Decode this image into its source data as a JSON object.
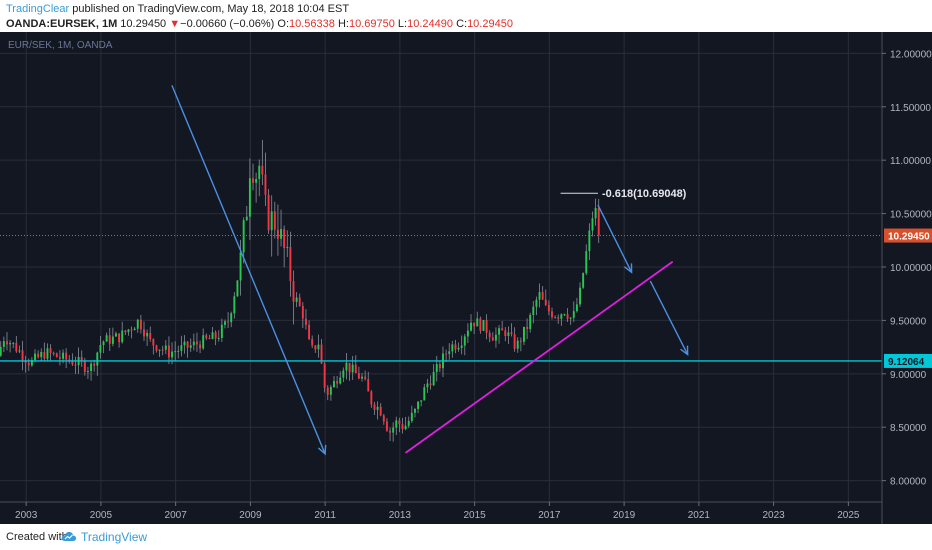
{
  "header": {
    "author": "TradingClear",
    "published_text": " published on TradingView.com, May 18, 2018 10:04 EST",
    "symbol": "OANDA:EURSEK, 1M",
    "last": "10.29450",
    "arrow": "▼",
    "change": "−0.00660 (−0.06%)",
    "o_label": "O:",
    "o_value": "10.56338",
    "h_label": "H:",
    "h_value": "10.69750",
    "l_label": "L:",
    "l_value": "10.24490",
    "c_label": "C:",
    "c_value": "10.29450"
  },
  "footer": {
    "created_with": "Created with",
    "brand": "TradingView"
  },
  "colors": {
    "background": "#131722",
    "grid": "#2a2e39",
    "up": "#26c94e",
    "down": "#f23645",
    "trend_arrow": "#4a90e2",
    "support_line": "#e020e0",
    "horizontal_line": "#00c8d8",
    "price_line": "#e0522b",
    "axis_text": "#b2b5be",
    "axis_bg": "#131722",
    "brand": "#3a9bd9"
  },
  "chart_data": {
    "type": "candlestick",
    "watermark": "EUR/SEK, 1M, OANDA",
    "x_ticks": [
      "2003",
      "2005",
      "2007",
      "2009",
      "2011",
      "2013",
      "2015",
      "2017",
      "2019",
      "2021",
      "2023",
      "2025"
    ],
    "xlim": [
      2002.3,
      2025.9
    ],
    "y_ticks": [
      "8.00000",
      "8.50000",
      "9.00000",
      "9.50000",
      "10.00000",
      "10.50000",
      "11.00000",
      "11.50000",
      "12.00000"
    ],
    "ylim": [
      7.8,
      12.2
    ],
    "last_price": {
      "label": "10.29450",
      "value": 10.2945
    },
    "horizontal_level": {
      "label": "9.12064",
      "value": 9.12064
    },
    "fib_label": {
      "text": "-0.618(10.69048)",
      "value": 10.69048,
      "x_start": 2017.3,
      "x_end": 2018.3
    },
    "support_line": {
      "x1": 2013.15,
      "y1": 8.26,
      "x2": 2020.3,
      "y2": 10.05
    },
    "arrows": [
      {
        "x1": 2006.9,
        "y1": 11.7,
        "x2": 2011.0,
        "y2": 8.25
      },
      {
        "x1": 2018.3,
        "y1": 10.58,
        "x2": 2019.2,
        "y2": 9.95
      },
      {
        "x1": 2019.7,
        "y1": 9.87,
        "x2": 2020.7,
        "y2": 9.18
      }
    ],
    "anchors": [
      [
        2002.3,
        9.15
      ],
      [
        2002.5,
        9.35
      ],
      [
        2002.8,
        9.25
      ],
      [
        2003.2,
        9.1
      ],
      [
        2003.6,
        9.2
      ],
      [
        2004.0,
        9.15
      ],
      [
        2004.5,
        9.1
      ],
      [
        2004.8,
        9.05
      ],
      [
        2005.1,
        9.3
      ],
      [
        2005.6,
        9.35
      ],
      [
        2006.1,
        9.5
      ],
      [
        2006.4,
        9.3
      ],
      [
        2006.9,
        9.2
      ],
      [
        2007.4,
        9.25
      ],
      [
        2007.8,
        9.3
      ],
      [
        2008.2,
        9.35
      ],
      [
        2008.5,
        9.5
      ],
      [
        2008.8,
        10.0
      ],
      [
        2009.0,
        10.6
      ],
      [
        2009.1,
        11.1
      ],
      [
        2009.2,
        10.8
      ],
      [
        2009.3,
        11.0
      ],
      [
        2009.5,
        10.5
      ],
      [
        2009.8,
        10.4
      ],
      [
        2009.95,
        10.2
      ],
      [
        2010.1,
        10.0
      ],
      [
        2010.3,
        9.7
      ],
      [
        2010.5,
        9.55
      ],
      [
        2010.7,
        9.2
      ],
      [
        2010.9,
        9.3
      ],
      [
        2011.1,
        8.8
      ],
      [
        2011.3,
        8.9
      ],
      [
        2011.6,
        9.1
      ],
      [
        2011.9,
        9.0
      ],
      [
        2012.1,
        8.95
      ],
      [
        2012.3,
        8.75
      ],
      [
        2012.6,
        8.65
      ],
      [
        2012.8,
        8.45
      ],
      [
        2013.0,
        8.55
      ],
      [
        2013.2,
        8.5
      ],
      [
        2013.5,
        8.65
      ],
      [
        2013.8,
        8.9
      ],
      [
        2014.1,
        9.05
      ],
      [
        2014.4,
        9.25
      ],
      [
        2014.7,
        9.3
      ],
      [
        2015.0,
        9.5
      ],
      [
        2015.3,
        9.45
      ],
      [
        2015.6,
        9.35
      ],
      [
        2015.9,
        9.4
      ],
      [
        2016.2,
        9.25
      ],
      [
        2016.5,
        9.45
      ],
      [
        2016.8,
        9.75
      ],
      [
        2017.0,
        9.6
      ],
      [
        2017.3,
        9.55
      ],
      [
        2017.5,
        9.6
      ],
      [
        2017.7,
        9.5
      ],
      [
        2017.9,
        9.75
      ],
      [
        2018.1,
        10.2
      ],
      [
        2018.3,
        10.6
      ],
      [
        2018.38,
        10.29
      ]
    ]
  }
}
